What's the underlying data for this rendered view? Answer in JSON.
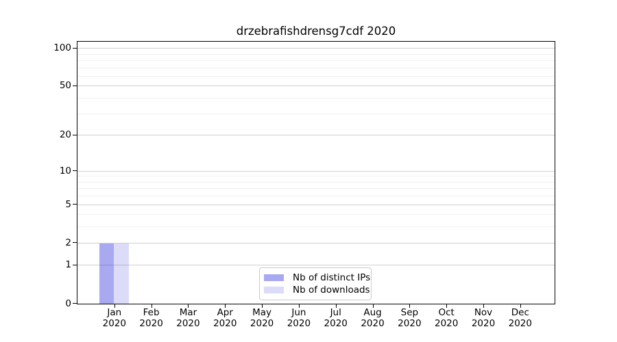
{
  "title": "drzebrafishdrensg7cdf 2020",
  "colors": {
    "distinct_ips": "rgba(40,40,220,0.40)",
    "downloads": "rgba(40,40,220,0.16)",
    "grid_major": "#cfcfcf",
    "grid_minor": "#f0f0f0",
    "axis": "#000000",
    "legend_border": "#cccccc",
    "background": "#ffffff",
    "text": "#000000"
  },
  "legend": {
    "items": [
      {
        "label": "Nb of distinct IPs",
        "color_key": "distinct_ips"
      },
      {
        "label": "Nb of downloads",
        "color_key": "downloads"
      }
    ]
  },
  "y_axis": {
    "scale": "log1p",
    "major_ticks": [
      0,
      1,
      2,
      5,
      10,
      20,
      50,
      100
    ],
    "minor_ticks": [
      3,
      4,
      6,
      7,
      8,
      9,
      30,
      40,
      60,
      70,
      80,
      90
    ],
    "max_value": 113
  },
  "x_axis": {
    "categories": [
      {
        "month": "Jan",
        "year": "2020"
      },
      {
        "month": "Feb",
        "year": "2020"
      },
      {
        "month": "Mar",
        "year": "2020"
      },
      {
        "month": "Apr",
        "year": "2020"
      },
      {
        "month": "May",
        "year": "2020"
      },
      {
        "month": "Jun",
        "year": "2020"
      },
      {
        "month": "Jul",
        "year": "2020"
      },
      {
        "month": "Aug",
        "year": "2020"
      },
      {
        "month": "Sep",
        "year": "2020"
      },
      {
        "month": "Oct",
        "year": "2020"
      },
      {
        "month": "Nov",
        "year": "2020"
      },
      {
        "month": "Dec",
        "year": "2020"
      }
    ]
  },
  "chart_data": {
    "type": "bar",
    "title": "drzebrafishdrensg7cdf 2020",
    "categories": [
      "Jan 2020",
      "Feb 2020",
      "Mar 2020",
      "Apr 2020",
      "May 2020",
      "Jun 2020",
      "Jul 2020",
      "Aug 2020",
      "Sep 2020",
      "Oct 2020",
      "Nov 2020",
      "Dec 2020"
    ],
    "series": [
      {
        "name": "Nb of distinct IPs",
        "color": "rgba(40,40,220,0.40)",
        "values": [
          2,
          0,
          0,
          0,
          0,
          0,
          0,
          0,
          0,
          0,
          0,
          0
        ]
      },
      {
        "name": "Nb of downloads",
        "color": "rgba(40,40,220,0.16)",
        "values": [
          2,
          0,
          0,
          0,
          0,
          0,
          0,
          0,
          0,
          0,
          0,
          0
        ]
      }
    ],
    "xlabel": "",
    "ylabel": "",
    "ylim": [
      0,
      113
    ],
    "yticks": [
      0,
      1,
      2,
      5,
      10,
      20,
      50,
      100
    ],
    "yscale": "log1p",
    "grid": "horizontal-major-and-minor",
    "legend_position": "lower center"
  }
}
